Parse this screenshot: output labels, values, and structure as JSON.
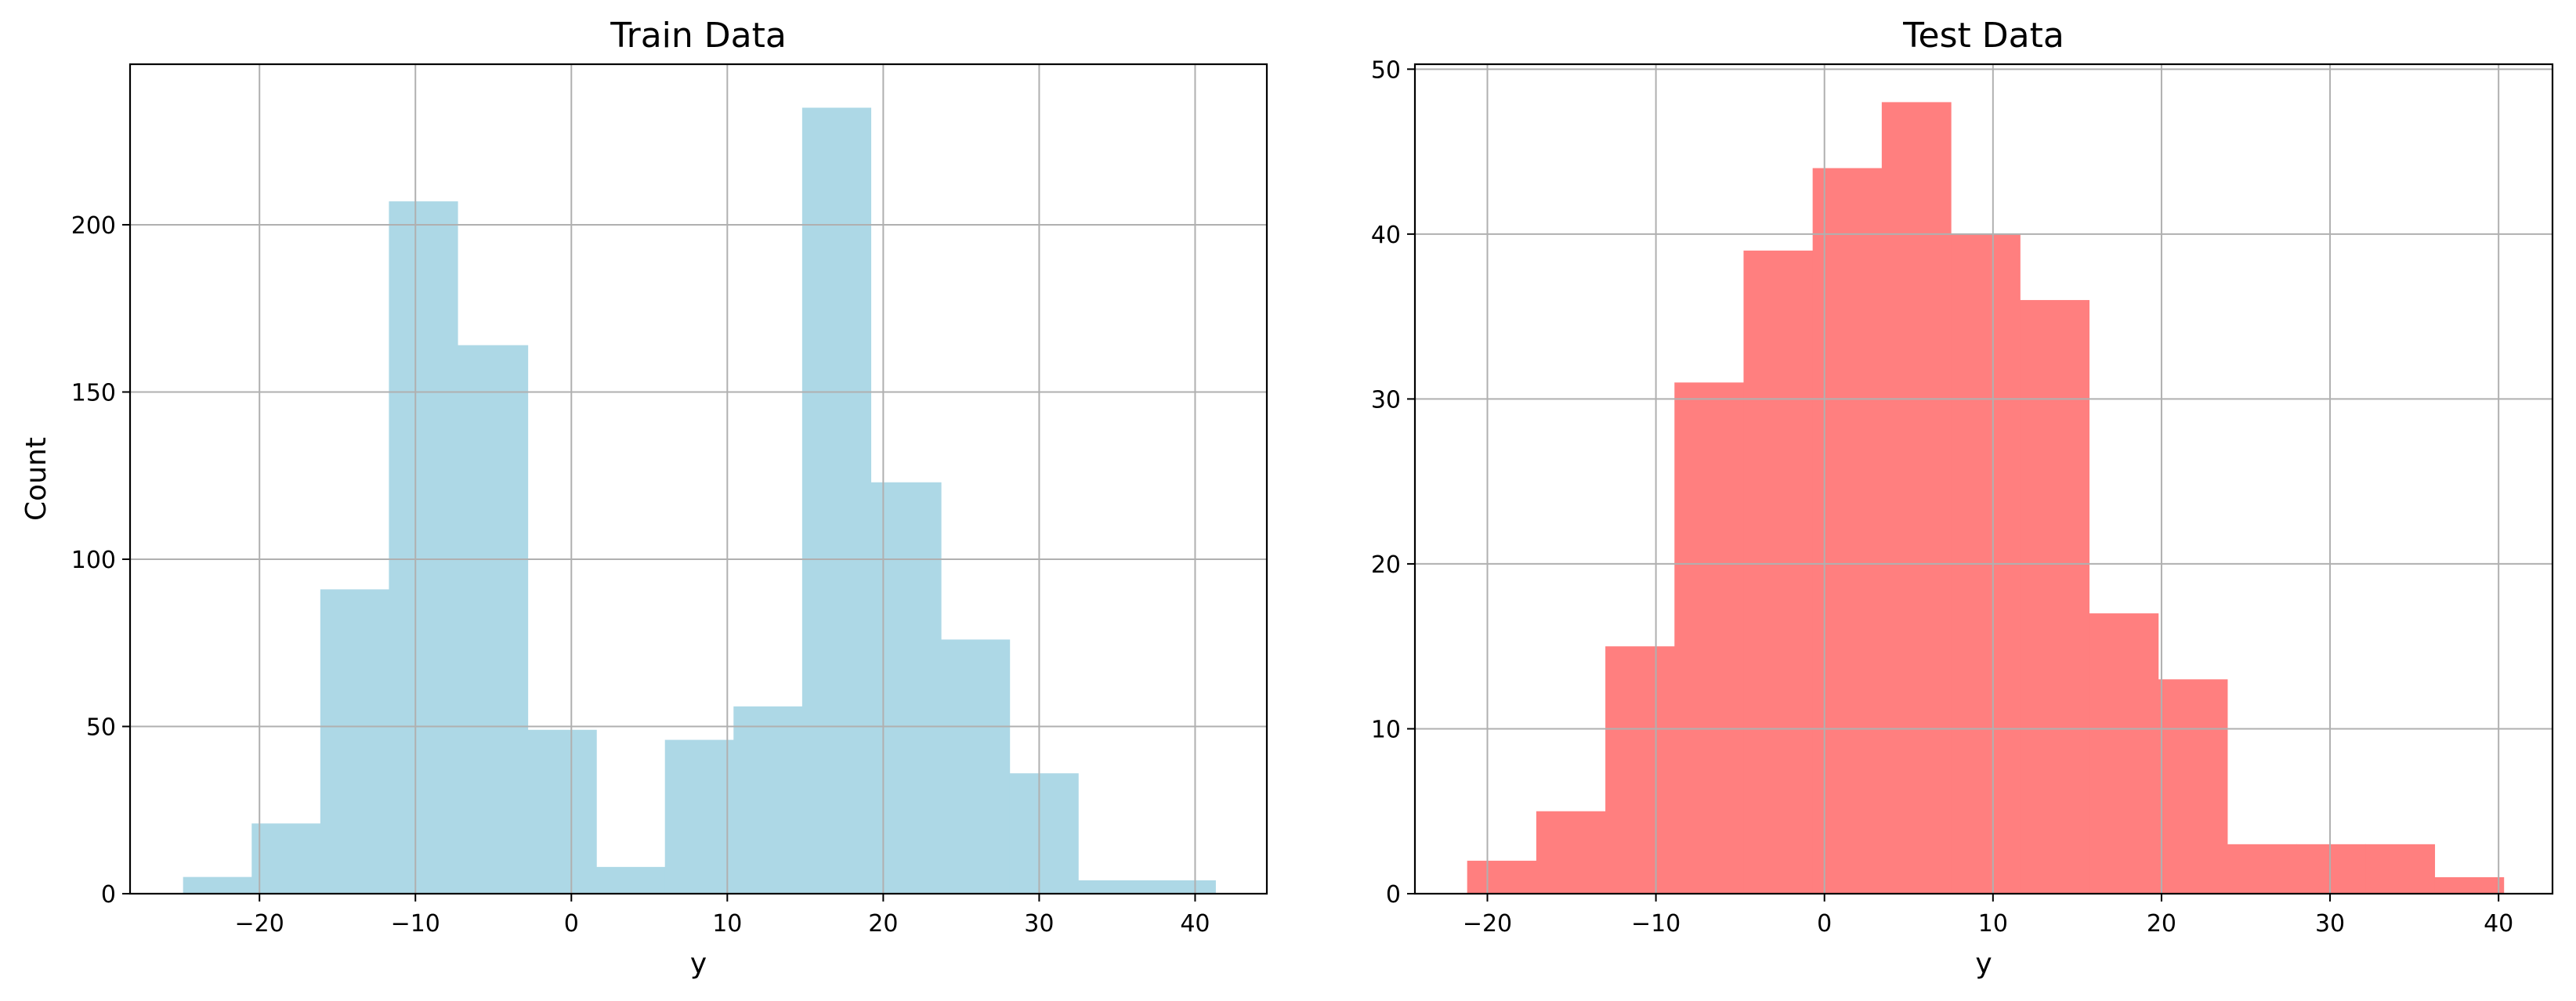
{
  "chart_data": [
    {
      "type": "bar",
      "title": "Train Data",
      "xlabel": "y",
      "ylabel": "Count",
      "xlim": [
        -28.3,
        44.6
      ],
      "ylim": [
        0,
        248
      ],
      "xticks": [
        -20,
        -10,
        0,
        10,
        20,
        30,
        40
      ],
      "xtick_labels": [
        "−20",
        "−10",
        "0",
        "10",
        "20",
        "30",
        "40"
      ],
      "yticks": [
        0,
        50,
        100,
        150,
        200
      ],
      "ytick_labels": [
        "0",
        "50",
        "100",
        "150",
        "200"
      ],
      "bin_edges": [
        -24.9,
        -20.5,
        -16.1,
        -11.7,
        -7.3,
        -2.8,
        1.6,
        6.0,
        10.4,
        14.8,
        19.2,
        23.7,
        28.1,
        32.5,
        36.9,
        41.3
      ],
      "values": [
        5,
        21,
        91,
        207,
        164,
        49,
        8,
        46,
        56,
        235,
        123,
        76,
        36,
        4,
        4
      ],
      "grid": true,
      "color": "#add8e6"
    },
    {
      "type": "bar",
      "title": "Test Data",
      "xlabel": "y",
      "ylabel": "",
      "xlim": [
        -24.3,
        43.2
      ],
      "ylim": [
        0,
        50.3
      ],
      "xticks": [
        -20,
        -10,
        0,
        10,
        20,
        30,
        40
      ],
      "xtick_labels": [
        "−20",
        "−10",
        "0",
        "10",
        "20",
        "30",
        "40"
      ],
      "yticks": [
        0,
        10,
        20,
        30,
        40,
        50
      ],
      "ytick_labels": [
        "0",
        "10",
        "20",
        "30",
        "40",
        "50"
      ],
      "bin_edges": [
        -21.2,
        -17.1,
        -13.0,
        -8.9,
        -4.8,
        -0.7,
        3.4,
        7.5,
        11.6,
        15.7,
        19.8,
        23.9,
        28.0,
        32.1,
        36.2,
        40.3
      ],
      "values": [
        2,
        5,
        15,
        31,
        39,
        44,
        48,
        40,
        36,
        17,
        13,
        3,
        3,
        3,
        1
      ],
      "grid": true,
      "color": "#ff7f7f"
    }
  ]
}
